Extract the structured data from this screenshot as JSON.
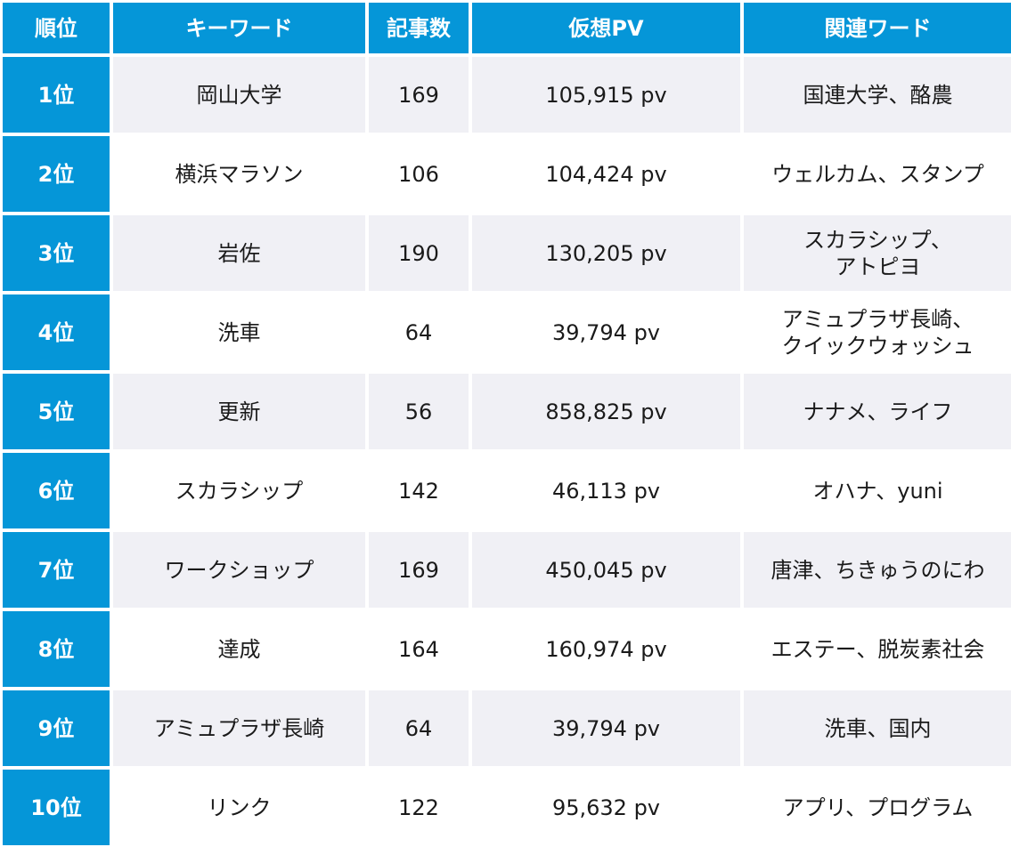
{
  "headers": {
    "rank": "順位",
    "keyword": "キーワード",
    "articles": "記事数",
    "pv": "仮想PV",
    "related": "関連ワード"
  },
  "rows": [
    {
      "rank": "1位",
      "keyword": "岡山大学",
      "articles": "169",
      "pv": "105,915 pv",
      "related": "国連大学、酪農"
    },
    {
      "rank": "2位",
      "keyword": "横浜マラソン",
      "articles": "106",
      "pv": "104,424 pv",
      "related": "ウェルカム、スタンプ"
    },
    {
      "rank": "3位",
      "keyword": "岩佐",
      "articles": "190",
      "pv": "130,205 pv",
      "related": "スカラシップ、\nアトピヨ"
    },
    {
      "rank": "4位",
      "keyword": "洗車",
      "articles": "64",
      "pv": "39,794 pv",
      "related": "アミュプラザ長崎、\nクイックウォッシュ"
    },
    {
      "rank": "5位",
      "keyword": "更新",
      "articles": "56",
      "pv": "858,825 pv",
      "related": "ナナメ、ライフ"
    },
    {
      "rank": "6位",
      "keyword": "スカラシップ",
      "articles": "142",
      "pv": "46,113 pv",
      "related": "オハナ、yuni"
    },
    {
      "rank": "7位",
      "keyword": "ワークショップ",
      "articles": "169",
      "pv": "450,045 pv",
      "related": "唐津、ちきゅうのにわ"
    },
    {
      "rank": "8位",
      "keyword": "達成",
      "articles": "164",
      "pv": "160,974 pv",
      "related": "エステー、脱炭素社会"
    },
    {
      "rank": "9位",
      "keyword": "アミュプラザ長崎",
      "articles": "64",
      "pv": "39,794 pv",
      "related": "洗車、国内"
    },
    {
      "rank": "10位",
      "keyword": "リンク",
      "articles": "122",
      "pv": "95,632 pv",
      "related": "アプリ、プログラム"
    }
  ]
}
